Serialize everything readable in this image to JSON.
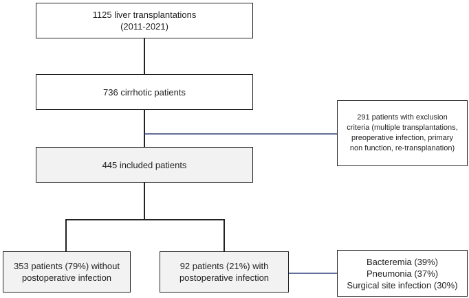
{
  "nodes": [
    {
      "lines": [
        "1125 liver transplantations",
        "(2011-2021)"
      ]
    },
    {
      "lines": [
        "736 cirrhotic patients"
      ]
    },
    {
      "lines": [
        "291 patients with exclusion",
        "criteria (multiple transplantations,",
        "preoperative infection, primary",
        "non function, re-transplanation)"
      ]
    },
    {
      "lines": [
        "445 included patients"
      ]
    },
    {
      "lines": [
        "353 patients (79%) without",
        "postoperative infection"
      ]
    },
    {
      "lines": [
        "92 patients (21%) with",
        "postoperative infection"
      ]
    },
    {
      "lines": [
        "Bacteremia (39%)",
        "Pneumonia (37%)",
        "Surgical site infection (30%)"
      ]
    }
  ]
}
